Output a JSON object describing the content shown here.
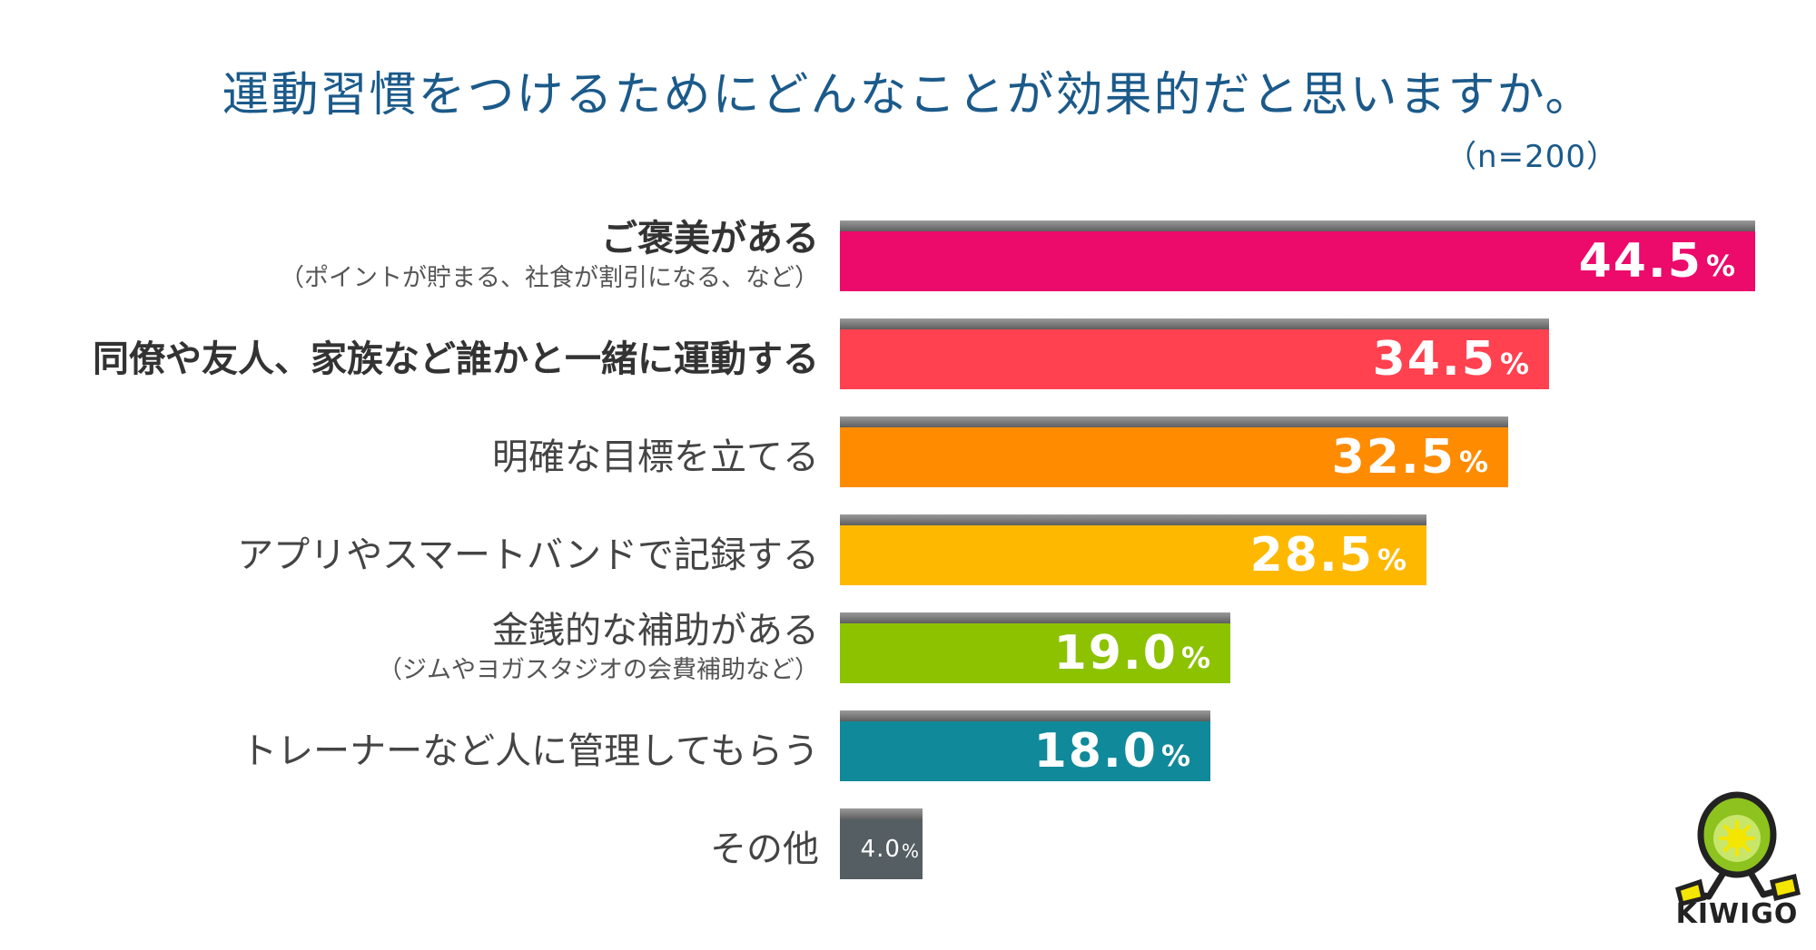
{
  "title": "運動習慣をつけるためにどんなことが効果的だと思いますか。",
  "sample": "（n=200）",
  "value_suffix": "%",
  "chart_data": {
    "type": "bar",
    "orientation": "horizontal",
    "title": "運動習慣をつけるためにどんなことが効果的だと思いますか。",
    "xlim": [
      0,
      60
    ],
    "grid": false,
    "categories": [
      "ご褒美がある",
      "同僚や友人、家族など誰かと一緒に運動する",
      "明確な目標を立てる",
      "アプリやスマートバンドで記録する",
      "金銭的な補助がある",
      "トレーナーなど人に管理してもらう",
      "その他"
    ],
    "subcategories": [
      "（ポイントが貯まる、社食が割引になる、など）",
      "",
      "",
      "",
      "（ジムやヨガスタジオの会費補助など）",
      "",
      ""
    ],
    "values": [
      44.5,
      34.5,
      32.5,
      28.5,
      19.0,
      18.0,
      4.0
    ],
    "value_labels": [
      "44.5",
      "34.5",
      "32.5",
      "28.5",
      "19.0",
      "18.0",
      "4.0"
    ],
    "colors": [
      "#ec0a6a",
      "#ff4150",
      "#ff8c00",
      "#ffb800",
      "#8cc200",
      "#10899a",
      "#555e62"
    ],
    "bold_categories": [
      true,
      true,
      false,
      false,
      false,
      false,
      false
    ]
  },
  "logo": {
    "text": "KIWIGO",
    "icon": "kiwi-character-icon",
    "colors": [
      "#8dc21f",
      "#222222",
      "#f5e600"
    ]
  }
}
